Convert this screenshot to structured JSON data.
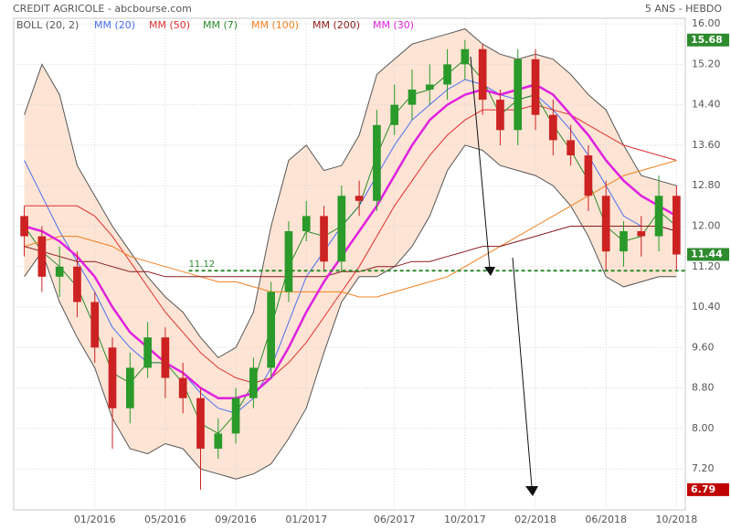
{
  "chart_data": {
    "type": "candlestick",
    "title": "CREDIT AGRICOLE - abcbourse.com",
    "subtitle": "5 ANS - HEBDO",
    "x": [
      -1,
      0,
      1,
      2,
      3,
      4,
      5,
      6,
      7,
      8,
      9,
      10,
      11,
      12,
      13,
      14,
      15,
      16,
      17,
      18,
      19,
      20,
      21,
      22,
      23,
      24,
      25,
      26,
      27,
      28,
      29,
      30,
      31,
      32,
      33,
      34,
      35,
      36
    ],
    "open": [
      12.2,
      11.8,
      11.0,
      11.2,
      10.5,
      9.6,
      8.4,
      9.2,
      9.8,
      9.0,
      8.6,
      7.6,
      7.9,
      8.6,
      9.2,
      10.7,
      11.9,
      12.2,
      11.3,
      12.6,
      12.5,
      14.0,
      14.4,
      14.7,
      14.8,
      15.2,
      15.5,
      14.5,
      13.9,
      15.3,
      14.2,
      13.7,
      13.4,
      12.6,
      11.5,
      11.9,
      11.8,
      12.6
    ],
    "high": [
      12.4,
      12.0,
      11.6,
      11.5,
      10.7,
      9.8,
      9.5,
      10.1,
      10.0,
      9.3,
      8.8,
      8.2,
      8.8,
      9.4,
      10.9,
      12.1,
      12.5,
      12.4,
      12.8,
      12.9,
      14.3,
      14.8,
      15.1,
      15.2,
      15.5,
      15.68,
      15.6,
      14.7,
      15.5,
      15.5,
      14.5,
      14.0,
      13.6,
      12.9,
      12.1,
      12.2,
      13.0,
      12.8
    ],
    "low": [
      11.4,
      10.7,
      10.6,
      10.2,
      9.3,
      7.6,
      8.1,
      9.0,
      8.6,
      8.3,
      6.79,
      7.4,
      7.7,
      8.4,
      9.0,
      10.5,
      11.7,
      11.1,
      11.1,
      12.2,
      12.3,
      13.8,
      14.1,
      14.4,
      14.5,
      14.9,
      14.2,
      13.6,
      13.6,
      13.9,
      13.4,
      13.2,
      12.3,
      11.1,
      11.2,
      11.4,
      11.5,
      11.1
    ],
    "close": [
      11.8,
      11.0,
      11.2,
      10.5,
      9.6,
      8.4,
      9.2,
      9.8,
      9.0,
      8.6,
      7.6,
      7.9,
      8.6,
      9.2,
      10.7,
      11.9,
      12.2,
      11.3,
      12.6,
      12.5,
      14.0,
      14.4,
      14.7,
      14.8,
      15.2,
      15.5,
      14.5,
      13.9,
      15.3,
      14.2,
      13.7,
      13.4,
      12.6,
      11.5,
      11.9,
      11.8,
      12.6,
      11.44
    ],
    "up_color": "#2a9a2a",
    "down_color": "#cc2222",
    "bollinger": {
      "name": "BOLL (20, 2)",
      "color": "#555555",
      "fill": "#fde4d4",
      "upper": [
        14.2,
        15.2,
        14.6,
        13.2,
        12.6,
        12.0,
        11.5,
        11.0,
        10.6,
        10.3,
        9.8,
        9.4,
        9.6,
        10.3,
        12.0,
        13.3,
        13.6,
        13.1,
        13.2,
        13.8,
        15.0,
        15.3,
        15.6,
        15.7,
        15.8,
        15.9,
        15.6,
        15.4,
        15.3,
        15.4,
        15.3,
        15.0,
        14.6,
        14.3,
        13.6,
        13.0,
        12.9,
        12.8
      ],
      "lower": [
        11.0,
        11.5,
        10.5,
        9.8,
        9.2,
        8.2,
        7.6,
        7.5,
        7.7,
        7.6,
        7.2,
        7.1,
        7.0,
        7.1,
        7.3,
        7.8,
        8.4,
        9.5,
        10.5,
        11.0,
        11.0,
        11.2,
        11.6,
        12.2,
        13.1,
        13.6,
        13.5,
        13.2,
        13.1,
        13.0,
        12.8,
        12.4,
        11.8,
        11.0,
        10.8,
        10.9,
        11.0,
        11.0
      ]
    },
    "series": [
      {
        "name": "MM (20)",
        "color": "#4a6ef0",
        "values": [
          13.3,
          12.6,
          11.9,
          11.3,
          10.7,
          10.0,
          9.6,
          9.3,
          9.3,
          9.1,
          8.7,
          8.4,
          8.3,
          8.6,
          9.2,
          10.1,
          11.0,
          11.5,
          12.0,
          12.4,
          13.0,
          13.6,
          14.1,
          14.4,
          14.7,
          14.9,
          14.8,
          14.6,
          14.5,
          14.6,
          14.3,
          13.9,
          13.4,
          12.8,
          12.2,
          12.0,
          12.0,
          11.9
        ]
      },
      {
        "name": "MM (50)",
        "color": "#e03030",
        "values": [
          12.4,
          12.4,
          12.4,
          12.4,
          12.2,
          11.8,
          11.3,
          10.8,
          10.3,
          9.9,
          9.5,
          9.2,
          9.0,
          8.9,
          9.0,
          9.3,
          9.7,
          10.2,
          10.7,
          11.2,
          11.8,
          12.4,
          12.9,
          13.4,
          13.8,
          14.1,
          14.3,
          14.3,
          14.3,
          14.4,
          14.3,
          14.2,
          14.0,
          13.8,
          13.6,
          13.5,
          13.4,
          13.3
        ]
      },
      {
        "name": "MM (7)",
        "color": "#2a8a2a",
        "values": [
          12.0,
          11.5,
          11.2,
          10.8,
          10.0,
          9.1,
          8.9,
          9.3,
          9.3,
          8.9,
          8.1,
          7.9,
          8.3,
          8.9,
          10.0,
          11.2,
          11.9,
          11.8,
          12.0,
          12.4,
          13.4,
          14.2,
          14.6,
          14.7,
          15.0,
          15.3,
          14.9,
          14.2,
          14.5,
          14.6,
          14.0,
          13.5,
          12.9,
          12.0,
          11.7,
          11.8,
          12.3,
          12.0
        ]
      },
      {
        "name": "MM (100)",
        "color": "#f08020",
        "values": [
          11.6,
          11.7,
          11.8,
          11.8,
          11.7,
          11.6,
          11.4,
          11.3,
          11.2,
          11.1,
          11.0,
          10.9,
          10.9,
          10.8,
          10.7,
          10.7,
          10.7,
          10.7,
          10.7,
          10.6,
          10.6,
          10.7,
          10.8,
          10.9,
          11.0,
          11.2,
          11.4,
          11.6,
          11.8,
          12.0,
          12.2,
          12.4,
          12.6,
          12.8,
          13.0,
          13.1,
          13.2,
          13.3
        ]
      },
      {
        "name": "MM (200)",
        "color": "#8b1a1a",
        "values": [
          11.6,
          11.5,
          11.4,
          11.3,
          11.3,
          11.2,
          11.1,
          11.1,
          11.0,
          11.0,
          11.0,
          11.0,
          11.0,
          11.0,
          11.0,
          11.0,
          11.0,
          11.0,
          11.1,
          11.1,
          11.2,
          11.2,
          11.3,
          11.3,
          11.4,
          11.5,
          11.6,
          11.6,
          11.7,
          11.8,
          11.9,
          12.0,
          12.0,
          12.0,
          12.0,
          12.0,
          12.0,
          11.9
        ]
      },
      {
        "name": "MM (30)",
        "color": "#e020e0",
        "values": [
          12.0,
          11.9,
          11.7,
          11.4,
          11.0,
          10.4,
          9.9,
          9.6,
          9.3,
          9.1,
          8.8,
          8.6,
          8.6,
          8.7,
          9.0,
          9.6,
          10.3,
          10.9,
          11.4,
          11.9,
          12.4,
          13.0,
          13.6,
          14.1,
          14.4,
          14.6,
          14.7,
          14.6,
          14.7,
          14.8,
          14.6,
          14.2,
          13.8,
          13.3,
          12.9,
          12.6,
          12.4,
          12.2
        ]
      }
    ],
    "xlim": [
      -1.6,
      36.5
    ],
    "xticks": [
      {
        "value": 3,
        "label": "01/2016"
      },
      {
        "value": 7,
        "label": "05/2016"
      },
      {
        "value": 11,
        "label": "09/2016"
      },
      {
        "value": 15,
        "label": "01/2017"
      },
      {
        "value": 20,
        "label": "06/2017"
      },
      {
        "value": 24,
        "label": "10/2017"
      },
      {
        "value": 28,
        "label": "02/2018"
      },
      {
        "value": 32,
        "label": "06/2018"
      },
      {
        "value": 36,
        "label": "10/2018"
      }
    ],
    "ylim": [
      6.39,
      16.11
    ],
    "yticks": [
      {
        "value": 7.2,
        "label": "7.20"
      },
      {
        "value": 8,
        "label": "8.00"
      },
      {
        "value": 8.8,
        "label": "8.80"
      },
      {
        "value": 9.6,
        "label": "9.60"
      },
      {
        "value": 10.4,
        "label": "10.40"
      },
      {
        "value": 11.2,
        "label": "11.20"
      },
      {
        "value": 12,
        "label": "12.00"
      },
      {
        "value": 12.8,
        "label": "12.80"
      },
      {
        "value": 13.6,
        "label": "13.60"
      },
      {
        "value": 14.4,
        "label": "14.40"
      },
      {
        "value": 15.2,
        "label": "15.20"
      },
      {
        "value": 16,
        "label": "16.00"
      }
    ],
    "grid": true,
    "price_labels": [
      {
        "value": 15.68,
        "color": "#2e8b2e"
      },
      {
        "value": 11.44,
        "color": "#2e8b2e"
      },
      {
        "value": 6.79,
        "color": "#c00000"
      }
    ],
    "support": {
      "value": 11.12,
      "color": "#2a8a2a"
    }
  }
}
